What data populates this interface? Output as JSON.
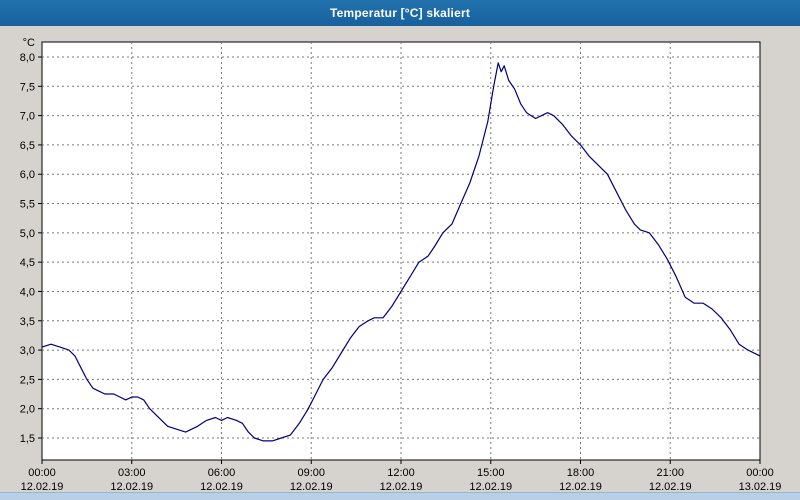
{
  "window": {
    "title": "Temperatur [°C] skaliert"
  },
  "colors": {
    "titlebar": "#17619d",
    "background": "#d6d3ce",
    "plot_background": "#ffffff",
    "plot_border": "#000000",
    "grid": "#7a7a7a",
    "line": "#000080",
    "tick_text": "#000000"
  },
  "chart_data": {
    "type": "line",
    "title": "Temperatur [°C] skaliert",
    "y_unit_label": "°C",
    "ylim": [
      1.5,
      8.0
    ],
    "x_range": [
      0,
      24
    ],
    "grid": true,
    "legend": "none",
    "y_ticks": [
      {
        "v": 8.0,
        "label": "8,0"
      },
      {
        "v": 7.5,
        "label": "7,5"
      },
      {
        "v": 7.0,
        "label": "7,0"
      },
      {
        "v": 6.5,
        "label": "6,5"
      },
      {
        "v": 6.0,
        "label": "6,0"
      },
      {
        "v": 5.5,
        "label": "5,5"
      },
      {
        "v": 5.0,
        "label": "5,0"
      },
      {
        "v": 4.5,
        "label": "4,5"
      },
      {
        "v": 4.0,
        "label": "4,0"
      },
      {
        "v": 3.5,
        "label": "3,5"
      },
      {
        "v": 3.0,
        "label": "3,0"
      },
      {
        "v": 2.5,
        "label": "2,5"
      },
      {
        "v": 2.0,
        "label": "2,0"
      },
      {
        "v": 1.5,
        "label": "1,5"
      }
    ],
    "x_ticks": [
      {
        "hour": 0,
        "time": "00:00",
        "date": "12.02.19"
      },
      {
        "hour": 3,
        "time": "03:00",
        "date": "12.02.19"
      },
      {
        "hour": 6,
        "time": "06:00",
        "date": "12.02.19"
      },
      {
        "hour": 9,
        "time": "09:00",
        "date": "12.02.19"
      },
      {
        "hour": 12,
        "time": "12:00",
        "date": "12.02.19"
      },
      {
        "hour": 15,
        "time": "15:00",
        "date": "12.02.19"
      },
      {
        "hour": 18,
        "time": "18:00",
        "date": "12.02.19"
      },
      {
        "hour": 21,
        "time": "21:00",
        "date": "12.02.19"
      },
      {
        "hour": 24,
        "time": "00:00",
        "date": "13.02.19"
      }
    ],
    "series": [
      {
        "name": "Temperatur",
        "color": "#000080",
        "x": [
          0,
          0.3,
          0.6,
          0.9,
          1.1,
          1.3,
          1.5,
          1.7,
          1.9,
          2.1,
          2.4,
          2.6,
          2.8,
          3.0,
          3.2,
          3.4,
          3.6,
          3.8,
          4.0,
          4.2,
          4.5,
          4.8,
          5.0,
          5.2,
          5.5,
          5.8,
          6.0,
          6.2,
          6.5,
          6.7,
          6.9,
          7.1,
          7.4,
          7.7,
          8.0,
          8.3,
          8.6,
          8.9,
          9.1,
          9.4,
          9.7,
          10.0,
          10.3,
          10.6,
          10.9,
          11.1,
          11.4,
          11.7,
          12.0,
          12.3,
          12.6,
          12.9,
          13.1,
          13.4,
          13.7,
          14.0,
          14.3,
          14.6,
          14.9,
          15.1,
          15.25,
          15.35,
          15.45,
          15.6,
          15.8,
          16.0,
          16.2,
          16.5,
          16.7,
          16.9,
          17.1,
          17.4,
          17.7,
          18.0,
          18.3,
          18.6,
          18.9,
          19.2,
          19.5,
          19.8,
          20.0,
          20.3,
          20.6,
          20.9,
          21.2,
          21.5,
          21.8,
          22.1,
          22.4,
          22.7,
          23.0,
          23.3,
          23.6,
          24.0
        ],
        "y": [
          3.05,
          3.1,
          3.05,
          3.0,
          2.9,
          2.7,
          2.5,
          2.35,
          2.3,
          2.25,
          2.25,
          2.2,
          2.15,
          2.2,
          2.2,
          2.15,
          2.0,
          1.9,
          1.8,
          1.7,
          1.65,
          1.6,
          1.65,
          1.7,
          1.8,
          1.85,
          1.8,
          1.85,
          1.8,
          1.75,
          1.6,
          1.5,
          1.45,
          1.45,
          1.5,
          1.55,
          1.75,
          2.0,
          2.2,
          2.5,
          2.7,
          2.95,
          3.2,
          3.4,
          3.5,
          3.55,
          3.55,
          3.75,
          4.0,
          4.25,
          4.5,
          4.6,
          4.75,
          5.0,
          5.15,
          5.5,
          5.85,
          6.3,
          6.9,
          7.5,
          7.9,
          7.75,
          7.85,
          7.6,
          7.45,
          7.2,
          7.05,
          6.95,
          7.0,
          7.05,
          7.0,
          6.85,
          6.65,
          6.5,
          6.3,
          6.15,
          6.0,
          5.7,
          5.4,
          5.15,
          5.05,
          5.0,
          4.8,
          4.55,
          4.25,
          3.9,
          3.8,
          3.8,
          3.7,
          3.55,
          3.35,
          3.1,
          3.0,
          2.9
        ]
      }
    ]
  }
}
